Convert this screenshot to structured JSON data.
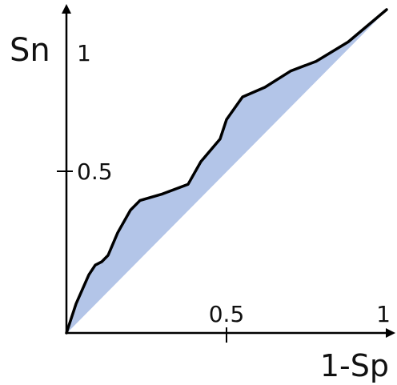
{
  "chart_data": {
    "type": "area",
    "title": "",
    "xlabel": "1-Sp",
    "ylabel": "Sn",
    "xlim": [
      0,
      1
    ],
    "ylim": [
      0,
      1
    ],
    "grid": false,
    "x_ticks": [
      {
        "value": 0.5,
        "label": "0.5"
      },
      {
        "value": 1,
        "label": "1"
      }
    ],
    "y_ticks": [
      {
        "value": 0.5,
        "label": "0.5"
      },
      {
        "value": 1,
        "label": "1"
      }
    ],
    "roc_curve": {
      "x": [
        0,
        0.03,
        0.07,
        0.09,
        0.11,
        0.13,
        0.16,
        0.2,
        0.23,
        0.3,
        0.38,
        0.42,
        0.48,
        0.5,
        0.55,
        0.62,
        0.7,
        0.78,
        0.88,
        1
      ],
      "y": [
        0,
        0.09,
        0.18,
        0.21,
        0.22,
        0.24,
        0.31,
        0.38,
        0.41,
        0.43,
        0.46,
        0.53,
        0.6,
        0.66,
        0.73,
        0.76,
        0.81,
        0.84,
        0.9,
        1
      ]
    },
    "reference_line": {
      "x": [
        0,
        1
      ],
      "y": [
        0,
        1
      ]
    },
    "colors": {
      "curve": "#000000",
      "fill": "#b3c5e8",
      "axis": "#000000"
    }
  }
}
